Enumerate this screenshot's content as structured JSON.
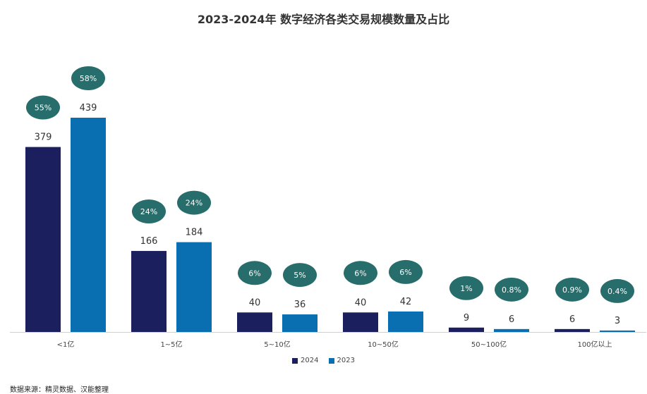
{
  "chart_data": {
    "type": "bar",
    "title": "2023-2024年 数字经济各类交易规模数量及占比",
    "categories": [
      "<1亿",
      "1~5亿",
      "5~10亿",
      "10~50亿",
      "50~100亿",
      "100亿以上"
    ],
    "series": [
      {
        "name": "2024",
        "color": "#1c1f5e",
        "values": [
          379,
          166,
          40,
          40,
          9,
          6
        ],
        "shares": [
          "55%",
          "24%",
          "6%",
          "6%",
          "1%",
          "0.9%"
        ]
      },
      {
        "name": "2023",
        "color": "#0a6fb0",
        "values": [
          439,
          184,
          36,
          42,
          6,
          3
        ],
        "shares": [
          "58%",
          "24%",
          "5%",
          "6%",
          "0.8%",
          "0.4%"
        ]
      }
    ],
    "bubble_color": "#266d6b",
    "ylim": [
      0,
      439
    ],
    "legend_position": "bottom",
    "grid": false
  },
  "source": "数据来源：精灵数据、汉能整理"
}
